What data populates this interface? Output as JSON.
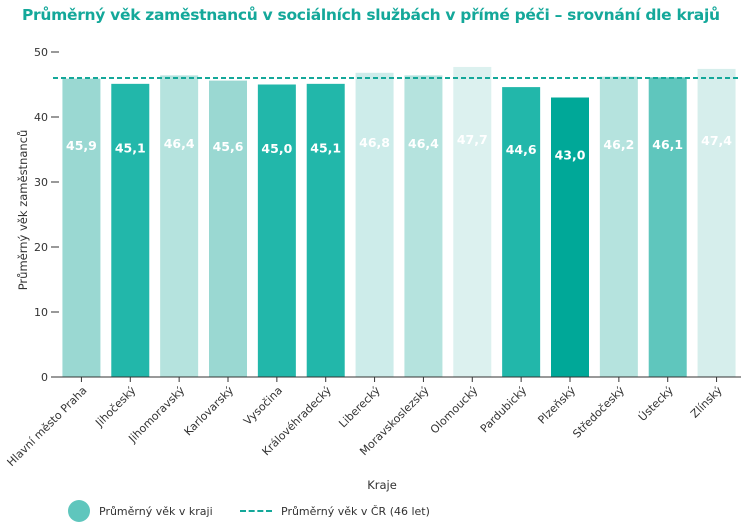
{
  "chart_data": {
    "type": "bar",
    "title": "Průměrný věk zaměstnanců v sociálních službách v přímé péči – srovnání dle krajů",
    "xlabel": "Kraje",
    "ylabel": "Průměrný věk zaměstnanců",
    "ylim": [
      0,
      50
    ],
    "yticks": [
      "0",
      "10",
      "20",
      "30",
      "40",
      "50"
    ],
    "ytick_values": [
      0,
      10,
      20,
      30,
      40,
      50
    ],
    "categories": [
      "Hlavní město Praha",
      "Jihočeský",
      "Jihomoravský",
      "Karlovarský",
      "Vysočina",
      "Královéhradecký",
      "Liberecký",
      "Moravskoslezský",
      "Olomoucký",
      "Pardubický",
      "Plzeňský",
      "Středočeský",
      "Ústecký",
      "Zlínský"
    ],
    "values": [
      45.9,
      45.1,
      46.4,
      45.6,
      45.0,
      45.1,
      46.8,
      46.4,
      47.7,
      44.6,
      43.0,
      46.2,
      46.1,
      47.4
    ],
    "value_labels": [
      "45,9",
      "45,1",
      "46,4",
      "45,6",
      "45,0",
      "45,1",
      "46,8",
      "46,4",
      "47,7",
      "44,6",
      "43,0",
      "46,2",
      "46,1",
      "47,4"
    ],
    "bar_colors": [
      "#9ad8d2",
      "#22b7aa",
      "#b5e3de",
      "#9ad8d2",
      "#22b7aa",
      "#22b7aa",
      "#cdecea",
      "#b5e3de",
      "#dcf1ef",
      "#22b7aa",
      "#00a898",
      "#b5e3de",
      "#5fc6bd",
      "#d6eeec"
    ],
    "label_colors": [
      "#ffffff",
      "#ffffff",
      "#ffffff",
      "#ffffff",
      "#ffffff",
      "#ffffff",
      "#ffffff",
      "#ffffff",
      "#ffffff",
      "#ffffff",
      "#ffffff",
      "#ffffff",
      "#ffffff",
      "#ffffff"
    ],
    "reference_line": {
      "value": 46,
      "color": "#14a89a",
      "style": "dashed"
    },
    "grid": false,
    "legend": [
      {
        "label": "Průměrný věk v kraji",
        "marker": "circle",
        "color": "#5fc6bd"
      },
      {
        "label": "Průměrný věk v ČR (46 let)",
        "marker": "dashed-line",
        "color": "#14a89a"
      }
    ],
    "legend_position": "bottom"
  },
  "colors": {
    "title": "#14a89a",
    "axis": "#333333"
  }
}
